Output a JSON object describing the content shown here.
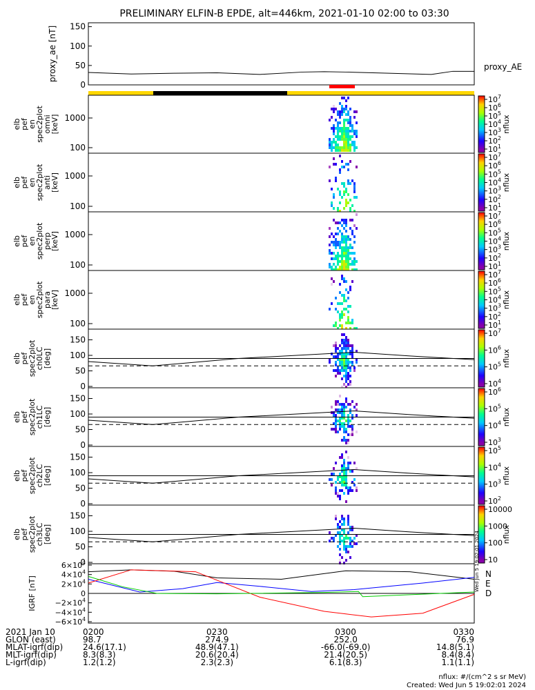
{
  "title": "PRELIMINARY ELFIN-B EPDE, alt=446km, 2021-01-10 02:00 to 03:30",
  "chart_data": [
    {
      "type": "line",
      "ylabel": "proxy_ae [nT]",
      "legend": "proxy_AE",
      "yticks": [
        "0",
        "50",
        "100",
        "150"
      ],
      "ylim": [
        0,
        160
      ],
      "x_minutes": [
        0,
        10,
        20,
        30,
        40,
        50,
        55,
        60,
        70,
        80,
        85,
        90
      ],
      "values": [
        32,
        28,
        30,
        31,
        27,
        33,
        34,
        33,
        30,
        27,
        35,
        35
      ]
    },
    {
      "type": "heatmap",
      "ylabel": [
        "elb",
        "pef",
        "en",
        "spec2plot",
        "omni",
        "[keV]"
      ],
      "yticks": [
        "100",
        "1000"
      ],
      "cbar_ticks": [
        "10^7",
        "10^6",
        "10^5",
        "10^4",
        "10^3",
        "10^2",
        "10^1"
      ],
      "cbar_label": "nflux"
    },
    {
      "type": "heatmap",
      "ylabel": [
        "elb",
        "pef",
        "en",
        "spec2plot",
        "anti",
        "[keV]"
      ],
      "yticks": [
        "100",
        "1000"
      ],
      "cbar_ticks": [
        "10^7",
        "10^6",
        "10^5",
        "10^4",
        "10^3",
        "10^2",
        "10^1"
      ],
      "cbar_label": "nflux"
    },
    {
      "type": "heatmap",
      "ylabel": [
        "elb",
        "pef",
        "en",
        "spec2plot",
        "perp",
        "[keV]"
      ],
      "yticks": [
        "100",
        "1000"
      ],
      "cbar_ticks": [
        "10^7",
        "10^6",
        "10^5",
        "10^4",
        "10^3",
        "10^2",
        "10^1"
      ],
      "cbar_label": "nflux"
    },
    {
      "type": "heatmap",
      "ylabel": [
        "elb",
        "pef",
        "en",
        "spec2plot",
        "para",
        "[keV]"
      ],
      "yticks": [
        "100",
        "1000"
      ],
      "cbar_ticks": [
        "10^7",
        "10^6",
        "10^5",
        "10^4",
        "10^3",
        "10^2",
        "10^1"
      ],
      "cbar_label": "nflux"
    },
    {
      "type": "heatmap",
      "ylabel": [
        "elb",
        "pef",
        "spec2plot",
        "ch0LC",
        "[deg]"
      ],
      "yticks": [
        "0",
        "50",
        "100",
        "150"
      ],
      "cbar_ticks": [
        "10^7",
        "10^6",
        "10^5",
        "10^4"
      ],
      "cbar_label": "nflux"
    },
    {
      "type": "heatmap",
      "ylabel": [
        "elb",
        "pef",
        "spec2plot",
        "ch1LC",
        "[deg]"
      ],
      "yticks": [
        "0",
        "50",
        "100",
        "150"
      ],
      "cbar_ticks": [
        "10^6",
        "10^5",
        "10^4",
        "10^3"
      ],
      "cbar_label": "nflux"
    },
    {
      "type": "heatmap",
      "ylabel": [
        "elb",
        "pef",
        "spec2plot",
        "ch2LC",
        "[deg]"
      ],
      "yticks": [
        "0",
        "50",
        "100",
        "150"
      ],
      "cbar_ticks": [
        "10^5",
        "10^4",
        "10^3",
        "10^2"
      ],
      "cbar_label": "nflux"
    },
    {
      "type": "heatmap",
      "ylabel": [
        "elb",
        "pef",
        "spec2plot",
        "ch3LC",
        "[deg]"
      ],
      "yticks": [
        "0",
        "50",
        "100",
        "150"
      ],
      "cbar_ticks": [
        "10000",
        "1000",
        "100",
        "10"
      ],
      "cbar_label": "nflux"
    },
    {
      "type": "line",
      "ylabel": "IGRF [nT]",
      "yticks": [
        "6×10^4",
        "4×10^4",
        "2×10^4",
        "0",
        "−2×10^4",
        "−4×10^4",
        "−6×10^4"
      ],
      "legend": [
        "N",
        "E",
        "D"
      ],
      "legend_colors": [
        "#0000ff",
        "#ff0000",
        "#00cc00"
      ]
    }
  ],
  "orbit_table": {
    "rows": [
      [
        "2021 Jan 10",
        "0200",
        "0230",
        "0300",
        "0330"
      ],
      [
        "GLON (east)",
        "98.7",
        "274.9",
        "252.0",
        "76.9"
      ],
      [
        "MLAT-igrf(dip)",
        "24.6(17.1)",
        "48.9(47.1)",
        "-66.0(-69.0)",
        "14.8(5.1)"
      ],
      [
        "MLT-igrf(dip)",
        "8.3(8.3)",
        "20.6(20.4)",
        "21.4(20.5)",
        "8.4(8.4)"
      ],
      [
        "L-igrf(dip)",
        "1.2(1.2)",
        "2.3(2.3)",
        "6.1(8.3)",
        "1.1(1.1)"
      ]
    ]
  },
  "footer": {
    "units": "nflux: #/(cm^2 s sr MeV)",
    "created": "Created: Wed Jun  5 19:02:01 2024",
    "side_stamp": "Wed Jun  5 19:02:01 2024"
  }
}
